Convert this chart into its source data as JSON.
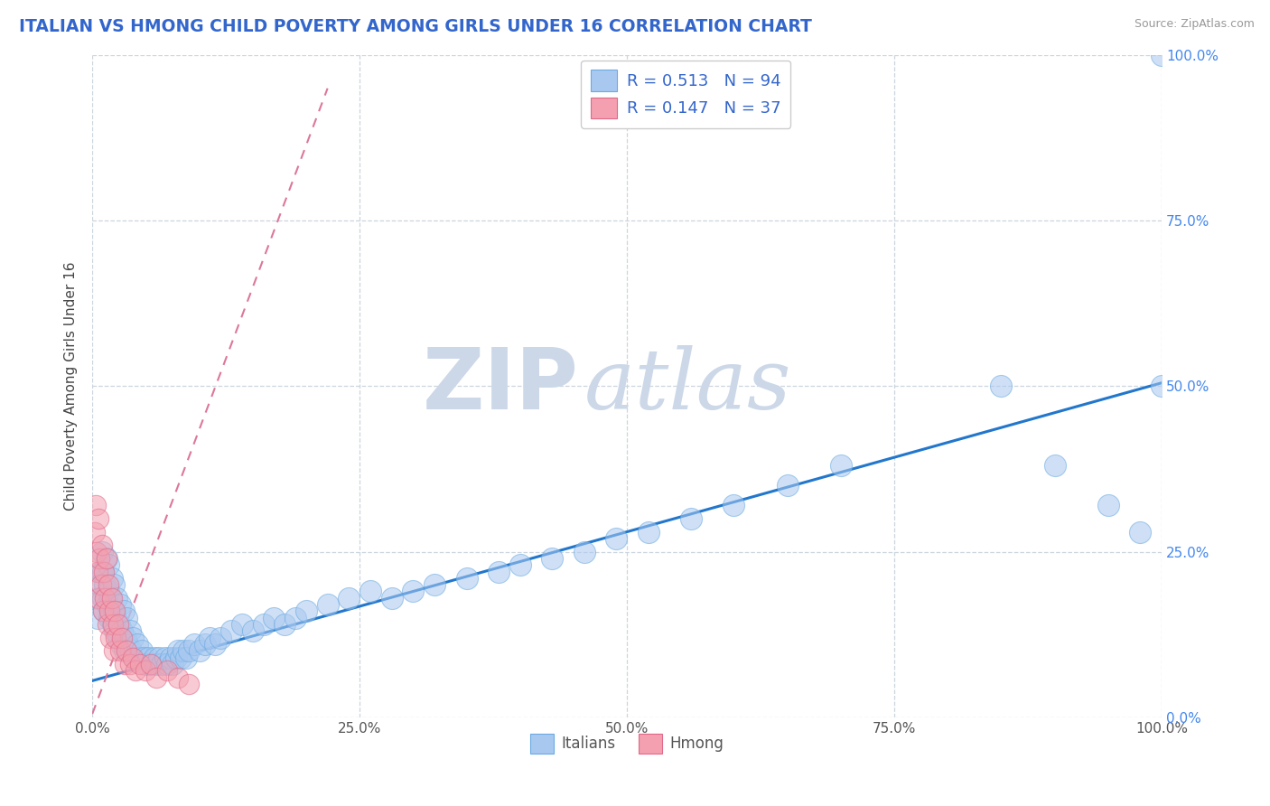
{
  "title": "ITALIAN VS HMONG CHILD POVERTY AMONG GIRLS UNDER 16 CORRELATION CHART",
  "source": "Source: ZipAtlas.com",
  "ylabel": "Child Poverty Among Girls Under 16",
  "xlim": [
    0,
    1.0
  ],
  "ylim": [
    0,
    1.0
  ],
  "xtick_labels": [
    "0.0%",
    "25.0%",
    "50.0%",
    "75.0%",
    "100.0%"
  ],
  "xtick_vals": [
    0.0,
    0.25,
    0.5,
    0.75,
    1.0
  ],
  "ytick_vals": [
    0.0,
    0.25,
    0.5,
    0.75,
    1.0
  ],
  "right_ytick_labels": [
    "0.0%",
    "25.0%",
    "50.0%",
    "75.0%",
    "100.0%"
  ],
  "italian_color": "#a8c8f0",
  "hmong_color": "#f4a0b0",
  "italian_edge": "#6aaae0",
  "hmong_edge": "#e06888",
  "trendline_italian_color": "#2277cc",
  "trendline_hmong_color": "#dd7799",
  "watermark_zip_color": "#ccd8e8",
  "watermark_atlas_color": "#ccd8e8",
  "background_color": "#ffffff",
  "grid_color": "#ccd5de",
  "legend_R_italian": "0.513",
  "legend_N_italian": "94",
  "legend_R_hmong": "0.147",
  "legend_N_hmong": "37",
  "legend_color": "#3366cc",
  "title_color": "#3366cc",
  "italian_x": [
    0.005,
    0.006,
    0.007,
    0.008,
    0.009,
    0.01,
    0.01,
    0.011,
    0.012,
    0.013,
    0.014,
    0.015,
    0.015,
    0.016,
    0.017,
    0.018,
    0.019,
    0.02,
    0.02,
    0.021,
    0.022,
    0.023,
    0.024,
    0.025,
    0.026,
    0.027,
    0.028,
    0.029,
    0.03,
    0.031,
    0.032,
    0.033,
    0.035,
    0.036,
    0.038,
    0.04,
    0.042,
    0.044,
    0.046,
    0.048,
    0.05,
    0.052,
    0.055,
    0.058,
    0.06,
    0.062,
    0.065,
    0.068,
    0.07,
    0.073,
    0.075,
    0.078,
    0.08,
    0.083,
    0.085,
    0.088,
    0.09,
    0.095,
    0.1,
    0.105,
    0.11,
    0.115,
    0.12,
    0.13,
    0.14,
    0.15,
    0.16,
    0.17,
    0.18,
    0.19,
    0.2,
    0.22,
    0.24,
    0.26,
    0.28,
    0.3,
    0.32,
    0.35,
    0.38,
    0.4,
    0.43,
    0.46,
    0.49,
    0.52,
    0.56,
    0.6,
    0.65,
    0.7,
    0.85,
    0.9,
    0.95,
    0.98,
    1.0,
    1.0
  ],
  "italian_y": [
    0.15,
    0.18,
    0.2,
    0.22,
    0.25,
    0.18,
    0.22,
    0.16,
    0.2,
    0.24,
    0.17,
    0.19,
    0.23,
    0.15,
    0.18,
    0.21,
    0.14,
    0.16,
    0.2,
    0.13,
    0.15,
    0.18,
    0.12,
    0.14,
    0.17,
    0.11,
    0.13,
    0.16,
    0.1,
    0.12,
    0.15,
    0.11,
    0.13,
    0.1,
    0.12,
    0.09,
    0.11,
    0.09,
    0.1,
    0.09,
    0.08,
    0.09,
    0.08,
    0.09,
    0.08,
    0.09,
    0.08,
    0.09,
    0.08,
    0.09,
    0.08,
    0.09,
    0.1,
    0.09,
    0.1,
    0.09,
    0.1,
    0.11,
    0.1,
    0.11,
    0.12,
    0.11,
    0.12,
    0.13,
    0.14,
    0.13,
    0.14,
    0.15,
    0.14,
    0.15,
    0.16,
    0.17,
    0.18,
    0.19,
    0.18,
    0.19,
    0.2,
    0.21,
    0.22,
    0.23,
    0.24,
    0.25,
    0.27,
    0.28,
    0.3,
    0.32,
    0.35,
    0.38,
    0.5,
    0.38,
    0.32,
    0.28,
    0.5,
    1.0
  ],
  "hmong_x": [
    0.002,
    0.003,
    0.004,
    0.005,
    0.006,
    0.006,
    0.007,
    0.008,
    0.009,
    0.01,
    0.011,
    0.012,
    0.013,
    0.014,
    0.015,
    0.016,
    0.017,
    0.018,
    0.019,
    0.02,
    0.021,
    0.022,
    0.024,
    0.026,
    0.028,
    0.03,
    0.032,
    0.035,
    0.038,
    0.04,
    0.045,
    0.05,
    0.055,
    0.06,
    0.07,
    0.08,
    0.09
  ],
  "hmong_y": [
    0.28,
    0.32,
    0.25,
    0.22,
    0.3,
    0.18,
    0.24,
    0.2,
    0.26,
    0.16,
    0.22,
    0.18,
    0.24,
    0.14,
    0.2,
    0.16,
    0.12,
    0.18,
    0.14,
    0.1,
    0.16,
    0.12,
    0.14,
    0.1,
    0.12,
    0.08,
    0.1,
    0.08,
    0.09,
    0.07,
    0.08,
    0.07,
    0.08,
    0.06,
    0.07,
    0.06,
    0.05
  ],
  "italian_trend_x": [
    0.0,
    1.0
  ],
  "italian_trend_y": [
    0.055,
    0.505
  ],
  "hmong_trend_x": [
    0.0,
    0.22
  ],
  "hmong_trend_y": [
    0.005,
    0.95
  ]
}
